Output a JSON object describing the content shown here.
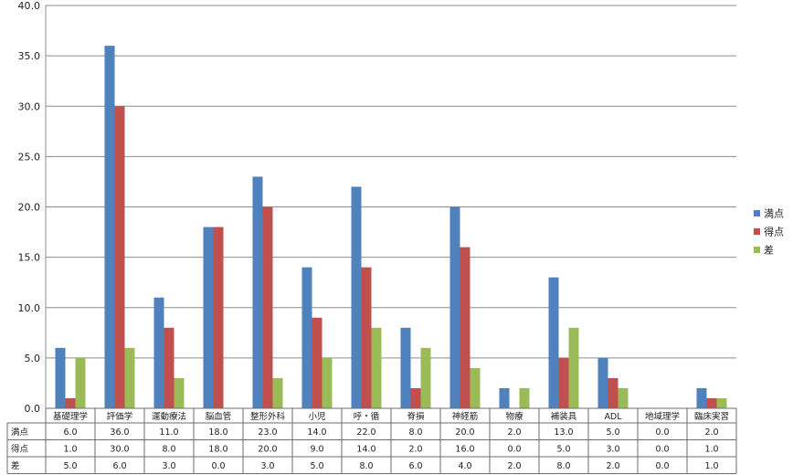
{
  "chart_data": {
    "type": "bar",
    "categories": [
      "基礎理学",
      "評価学",
      "運動療法",
      "脳血管",
      "整形外科",
      "小児",
      "呼・循",
      "脊損",
      "神経筋",
      "物療",
      "補装具",
      "ADL",
      "地域理学",
      "臨床実習"
    ],
    "series": [
      {
        "name": "満点",
        "color": "#4F81BD",
        "values": [
          6.0,
          36.0,
          11.0,
          18.0,
          23.0,
          14.0,
          22.0,
          8.0,
          20.0,
          2.0,
          13.0,
          5.0,
          0.0,
          2.0
        ]
      },
      {
        "name": "得点",
        "color": "#C0504D",
        "values": [
          1.0,
          30.0,
          8.0,
          18.0,
          20.0,
          9.0,
          14.0,
          2.0,
          16.0,
          0.0,
          5.0,
          3.0,
          0.0,
          1.0
        ]
      },
      {
        "name": "差",
        "color": "#9BBB59",
        "values": [
          5.0,
          6.0,
          3.0,
          0.0,
          3.0,
          5.0,
          8.0,
          6.0,
          4.0,
          2.0,
          8.0,
          2.0,
          0.0,
          1.0
        ]
      }
    ],
    "y_ticks": [
      "0.0",
      "5.0",
      "10.0",
      "15.0",
      "20.0",
      "25.0",
      "30.0",
      "35.0",
      "40.0"
    ],
    "ylim": [
      0,
      40
    ],
    "grid": true,
    "legend_position": "right",
    "data_table": true
  }
}
